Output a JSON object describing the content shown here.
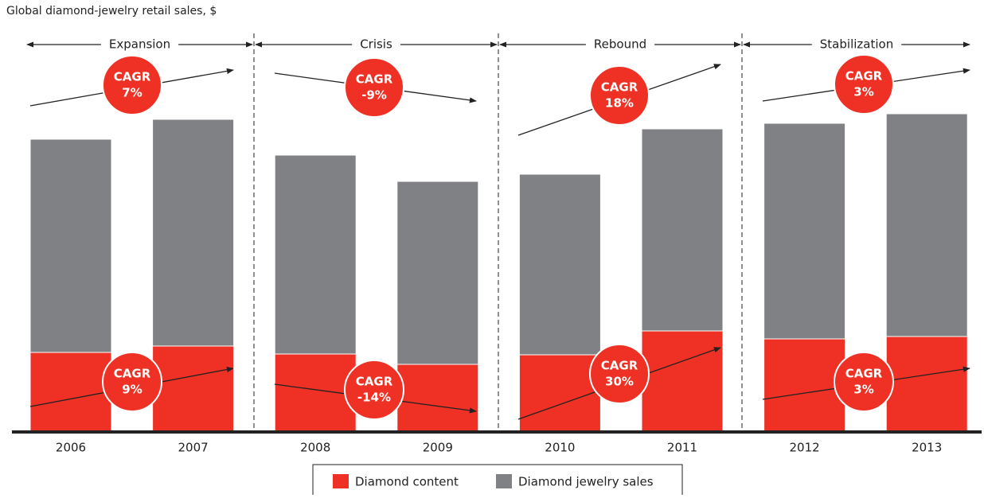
{
  "chart_data": {
    "type": "bar",
    "stacked": true,
    "title": "Global diamond-jewelry retail sales, $",
    "categories": [
      "2006",
      "2007",
      "2008",
      "2009",
      "2010",
      "2011",
      "2012",
      "2013"
    ],
    "series": [
      {
        "name": "Diamond content",
        "color": "#ee3124",
        "values": [
          100,
          108,
          98,
          85,
          97,
          127,
          117,
          120
        ]
      },
      {
        "name": "Diamond jewelry sales",
        "color": "#808184",
        "values": [
          268,
          285,
          250,
          230,
          227,
          254,
          271,
          280
        ]
      }
    ],
    "ylim": [
      0,
      400
    ],
    "cagr_label": "CAGR",
    "phases": [
      {
        "name": "Expansion",
        "total_cagr": {
          "value": 7,
          "label": "7%"
        },
        "content_cagr": {
          "value": 9,
          "label": "9%"
        }
      },
      {
        "name": "Crisis",
        "total_cagr": {
          "value": -9,
          "label": "-9%"
        },
        "content_cagr": {
          "value": -14,
          "label": "-14%"
        }
      },
      {
        "name": "Rebound",
        "total_cagr": {
          "value": 18,
          "label": "18%"
        },
        "content_cagr": {
          "value": 30,
          "label": "30%"
        }
      },
      {
        "name": "Stabilization",
        "total_cagr": {
          "value": 3,
          "label": "3%"
        },
        "content_cagr": {
          "value": 3,
          "label": "3%"
        }
      }
    ]
  }
}
